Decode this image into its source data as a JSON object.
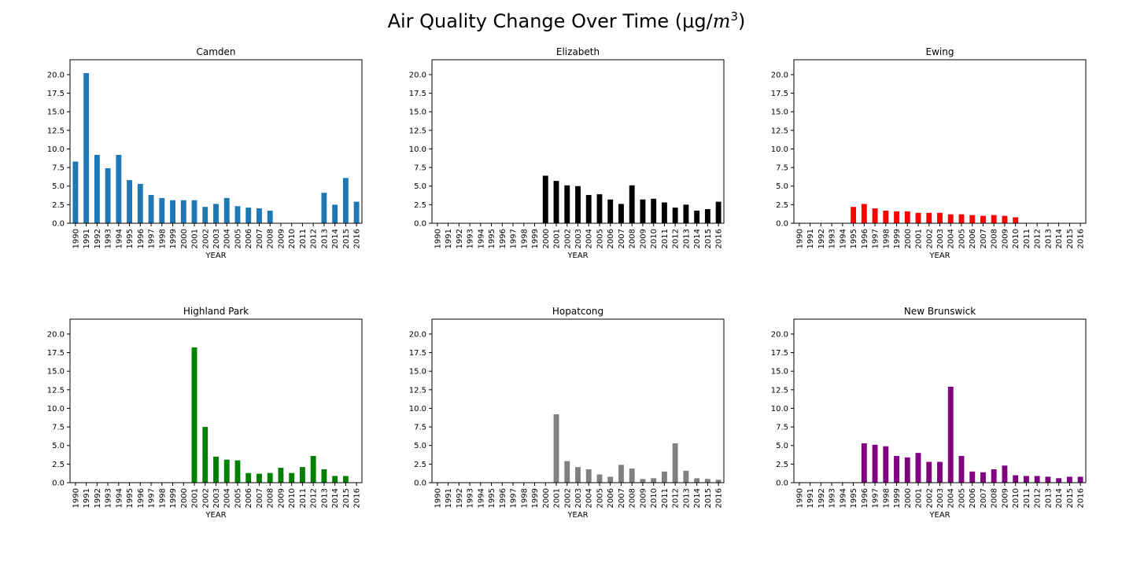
{
  "figure": {
    "title_prefix": "Air Quality Change Over Time (μg/",
    "title_math": "m",
    "title_sup": "3",
    "title_suffix": ")"
  },
  "chart_data": [
    {
      "type": "bar",
      "title": "Camden",
      "xlabel": "YEAR",
      "ylabel": "",
      "color": "#1f77b4",
      "ylim": [
        0,
        22
      ],
      "yticks": [
        "0.0",
        "2.5",
        "5.0",
        "7.5",
        "10.0",
        "12.5",
        "15.0",
        "17.5",
        "20.0"
      ],
      "categories": [
        "1990",
        "1991",
        "1992",
        "1993",
        "1994",
        "1995",
        "1996",
        "1997",
        "1998",
        "1999",
        "2000",
        "2001",
        "2002",
        "2003",
        "2004",
        "2005",
        "2006",
        "2007",
        "2008",
        "2009",
        "2010",
        "2011",
        "2012",
        "2013",
        "2014",
        "2015",
        "2016"
      ],
      "values": [
        8.3,
        20.2,
        9.2,
        7.4,
        9.2,
        5.8,
        5.3,
        3.8,
        3.4,
        3.1,
        3.1,
        3.1,
        2.2,
        2.6,
        3.4,
        2.3,
        2.1,
        2.0,
        1.7,
        0,
        0,
        0,
        0,
        4.1,
        2.5,
        6.1,
        2.9
      ]
    },
    {
      "type": "bar",
      "title": "Elizabeth",
      "xlabel": "YEAR",
      "ylabel": "",
      "color": "#000000",
      "ylim": [
        0,
        22
      ],
      "yticks": [
        "0.0",
        "2.5",
        "5.0",
        "7.5",
        "10.0",
        "12.5",
        "15.0",
        "17.5",
        "20.0"
      ],
      "categories": [
        "1990",
        "1991",
        "1992",
        "1993",
        "1994",
        "1995",
        "1996",
        "1997",
        "1998",
        "1999",
        "2000",
        "2001",
        "2002",
        "2003",
        "2004",
        "2005",
        "2006",
        "2007",
        "2008",
        "2009",
        "2010",
        "2011",
        "2012",
        "2013",
        "2014",
        "2015",
        "2016"
      ],
      "values": [
        0,
        0,
        0,
        0,
        0,
        0,
        0,
        0,
        0,
        0,
        6.4,
        5.7,
        5.1,
        5.0,
        3.8,
        3.9,
        3.2,
        2.6,
        5.1,
        3.2,
        3.3,
        2.8,
        2.1,
        2.5,
        1.7,
        1.9,
        2.9
      ]
    },
    {
      "type": "bar",
      "title": "Ewing",
      "xlabel": "YEAR",
      "ylabel": "",
      "color": "#ff0000",
      "ylim": [
        0,
        22
      ],
      "yticks": [
        "0.0",
        "2.5",
        "5.0",
        "7.5",
        "10.0",
        "12.5",
        "15.0",
        "17.5",
        "20.0"
      ],
      "categories": [
        "1990",
        "1991",
        "1992",
        "1993",
        "1994",
        "1995",
        "1996",
        "1997",
        "1998",
        "1999",
        "2000",
        "2001",
        "2002",
        "2003",
        "2004",
        "2005",
        "2006",
        "2007",
        "2008",
        "2009",
        "2010",
        "2011",
        "2012",
        "2013",
        "2014",
        "2015",
        "2016"
      ],
      "values": [
        0,
        0,
        0,
        0,
        0,
        2.2,
        2.6,
        2.0,
        1.7,
        1.6,
        1.6,
        1.4,
        1.4,
        1.4,
        1.2,
        1.2,
        1.1,
        1.0,
        1.1,
        1.0,
        0.8,
        0,
        0,
        0,
        0,
        0,
        0
      ]
    },
    {
      "type": "bar",
      "title": "Highland Park",
      "xlabel": "YEAR",
      "ylabel": "",
      "color": "#008000",
      "ylim": [
        0,
        22
      ],
      "yticks": [
        "0.0",
        "2.5",
        "5.0",
        "7.5",
        "10.0",
        "12.5",
        "15.0",
        "17.5",
        "20.0"
      ],
      "categories": [
        "1990",
        "1991",
        "1992",
        "1993",
        "1994",
        "1995",
        "1996",
        "1997",
        "1998",
        "1999",
        "2000",
        "2001",
        "2002",
        "2003",
        "2004",
        "2005",
        "2006",
        "2007",
        "2008",
        "2009",
        "2010",
        "2011",
        "2012",
        "2013",
        "2014",
        "2015",
        "2016"
      ],
      "values": [
        0,
        0,
        0,
        0,
        0,
        0,
        0,
        0,
        0,
        0,
        0,
        18.2,
        7.5,
        3.5,
        3.1,
        3.0,
        1.3,
        1.2,
        1.3,
        2.0,
        1.3,
        2.1,
        3.6,
        1.8,
        0.9,
        0.9,
        0
      ]
    },
    {
      "type": "bar",
      "title": "Hopatcong",
      "xlabel": "YEAR",
      "ylabel": "",
      "color": "#808080",
      "ylim": [
        0,
        22
      ],
      "yticks": [
        "0.0",
        "2.5",
        "5.0",
        "7.5",
        "10.0",
        "12.5",
        "15.0",
        "17.5",
        "20.0"
      ],
      "categories": [
        "1990",
        "1991",
        "1992",
        "1993",
        "1994",
        "1995",
        "1996",
        "1997",
        "1998",
        "1999",
        "2000",
        "2001",
        "2002",
        "2003",
        "2004",
        "2005",
        "2006",
        "2007",
        "2008",
        "2009",
        "2010",
        "2011",
        "2012",
        "2013",
        "2014",
        "2015",
        "2016"
      ],
      "values": [
        0,
        0,
        0,
        0,
        0,
        0,
        0,
        0,
        0,
        0,
        0,
        9.2,
        2.9,
        2.1,
        1.8,
        1.1,
        0.8,
        2.4,
        1.9,
        0.5,
        0.6,
        1.5,
        5.3,
        1.6,
        0.6,
        0.5,
        0.4
      ]
    },
    {
      "type": "bar",
      "title": "New Brunswick",
      "xlabel": "YEAR",
      "ylabel": "",
      "color": "#800080",
      "ylim": [
        0,
        22
      ],
      "yticks": [
        "0.0",
        "2.5",
        "5.0",
        "7.5",
        "10.0",
        "12.5",
        "15.0",
        "17.5",
        "20.0"
      ],
      "categories": [
        "1990",
        "1991",
        "1992",
        "1993",
        "1994",
        "1995",
        "1996",
        "1997",
        "1998",
        "1999",
        "2000",
        "2001",
        "2002",
        "2003",
        "2004",
        "2005",
        "2006",
        "2007",
        "2008",
        "2009",
        "2010",
        "2011",
        "2012",
        "2013",
        "2014",
        "2015",
        "2016"
      ],
      "values": [
        0,
        0,
        0,
        0,
        0,
        0,
        5.3,
        5.1,
        4.9,
        3.6,
        3.4,
        4.0,
        2.8,
        2.8,
        12.9,
        3.6,
        1.5,
        1.4,
        1.8,
        2.3,
        1.0,
        0.9,
        0.9,
        0.8,
        0.6,
        0.8,
        0.8
      ]
    }
  ]
}
